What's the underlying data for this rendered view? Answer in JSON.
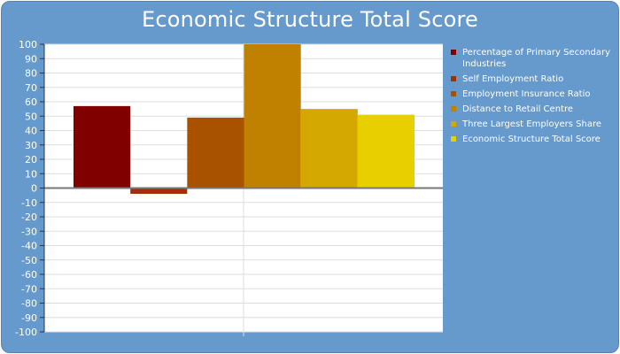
{
  "chart_data": {
    "type": "bar",
    "title": "Economic Structure Total Score",
    "xlabel": "",
    "ylabel": "",
    "ylim": [
      -100,
      100
    ],
    "ytick_step": 10,
    "grid": true,
    "legend_position": "right",
    "series": [
      {
        "name": "Percentage of Primary Secondary Industries",
        "values": [
          57
        ],
        "color": "#800000"
      },
      {
        "name": "Self Employment Ratio",
        "values": [
          -4
        ],
        "color": "#a0300a"
      },
      {
        "name": "Employment Insurance Ratio",
        "values": [
          49
        ],
        "color": "#a85200"
      },
      {
        "name": "Distance to Retail Centre",
        "values": [
          100
        ],
        "color": "#c08000"
      },
      {
        "name": "Three Largest Employers Share",
        "values": [
          55
        ],
        "color": "#d4a800"
      },
      {
        "name": "Economic Structure Total Score",
        "values": [
          51
        ],
        "color": "#e8d000"
      }
    ]
  },
  "colors": {
    "background": "#6699cc",
    "plot_background": "#ffffff",
    "gridline": "#dddddd",
    "zero_line": "#777777",
    "text": "#ffffff"
  }
}
